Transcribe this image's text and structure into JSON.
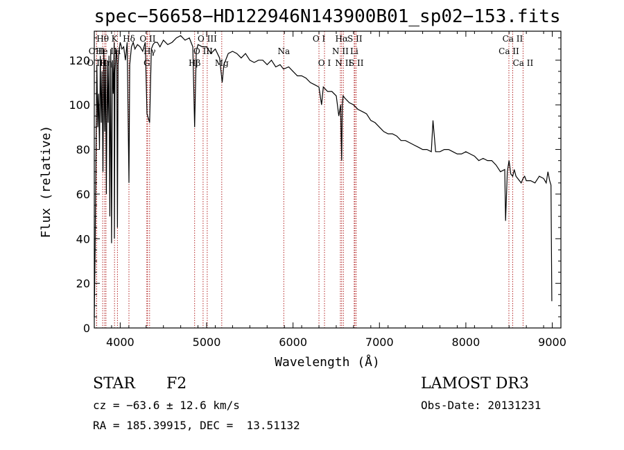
{
  "footer": {
    "object_class": "STAR",
    "subclass": "F2",
    "survey": "LAMOST DR3",
    "cz": "cz = −63.6 ± 12.6 km/s",
    "obs_date": "Obs-Date: 20131231",
    "coords": "RA = 185.39915, DEC =  13.51132"
  },
  "chart_data": {
    "type": "line",
    "title": "spec−56658−HD122946N143900B01_sp02−153.fits",
    "xlabel": "Wavelength (Å)",
    "ylabel": "Flux (relative)",
    "xlim": [
      3700,
      9100
    ],
    "ylim": [
      0,
      133
    ],
    "xticks": [
      4000,
      5000,
      6000,
      7000,
      8000,
      9000
    ],
    "yticks": [
      0,
      20,
      40,
      60,
      80,
      100,
      120
    ],
    "grid": false,
    "series": [
      {
        "name": "flux",
        "x": [
          3700,
          3710,
          3720,
          3730,
          3740,
          3750,
          3760,
          3770,
          3780,
          3790,
          3800,
          3810,
          3820,
          3830,
          3840,
          3850,
          3860,
          3870,
          3880,
          3890,
          3900,
          3910,
          3920,
          3930,
          3933,
          3940,
          3950,
          3960,
          3968,
          3975,
          3985,
          4000,
          4020,
          4040,
          4060,
          4080,
          4101,
          4110,
          4130,
          4150,
          4170,
          4200,
          4230,
          4260,
          4290,
          4310,
          4340,
          4360,
          4380,
          4400,
          4430,
          4460,
          4500,
          4550,
          4600,
          4650,
          4700,
          4750,
          4800,
          4820,
          4840,
          4861,
          4880,
          4900,
          4950,
          5000,
          5050,
          5100,
          5150,
          5180,
          5200,
          5250,
          5300,
          5350,
          5400,
          5450,
          5500,
          5550,
          5600,
          5650,
          5700,
          5750,
          5800,
          5850,
          5890,
          5950,
          6000,
          6050,
          6100,
          6150,
          6200,
          6250,
          6300,
          6330,
          6350,
          6400,
          6450,
          6500,
          6530,
          6550,
          6563,
          6570,
          6580,
          6600,
          6650,
          6700,
          6750,
          6800,
          6850,
          6900,
          6950,
          7000,
          7050,
          7100,
          7150,
          7200,
          7250,
          7300,
          7350,
          7400,
          7450,
          7500,
          7550,
          7600,
          7620,
          7650,
          7700,
          7750,
          7800,
          7850,
          7900,
          7950,
          8000,
          8050,
          8100,
          8150,
          8200,
          8250,
          8300,
          8350,
          8400,
          8450,
          8460,
          8480,
          8500,
          8520,
          8542,
          8560,
          8580,
          8600,
          8640,
          8662,
          8680,
          8700,
          8750,
          8800,
          8850,
          8900,
          8930,
          8950,
          8970,
          8985,
          8995
        ],
        "values": [
          5,
          35,
          80,
          118,
          90,
          105,
          80,
          122,
          92,
          115,
          70,
          125,
          88,
          118,
          60,
          120,
          92,
          122,
          50,
          125,
          38,
          120,
          105,
          128,
          40,
          115,
          122,
          125,
          45,
          118,
          124,
          128,
          125,
          126,
          120,
          128,
          65,
          118,
          126,
          128,
          125,
          127,
          126,
          124,
          128,
          96,
          92,
          125,
          127,
          128,
          128,
          126,
          129,
          127,
          128,
          130,
          131,
          129,
          130,
          128,
          126,
          90,
          124,
          127,
          126,
          126,
          123,
          125,
          121,
          110,
          118,
          123,
          124,
          123,
          121,
          123,
          120,
          119,
          120,
          120,
          118,
          120,
          117,
          118,
          116,
          117,
          115,
          113,
          113,
          112,
          110,
          109,
          108,
          100,
          108,
          106,
          106,
          104,
          95,
          100,
          75,
          100,
          104,
          103,
          101,
          100,
          98,
          97,
          96,
          93,
          92,
          90,
          88,
          87,
          87,
          86,
          84,
          84,
          83,
          82,
          81,
          80,
          80,
          79,
          93,
          79,
          79,
          80,
          80,
          79,
          78,
          78,
          79,
          78,
          77,
          75,
          76,
          75,
          75,
          73,
          70,
          71,
          48,
          70,
          75,
          69,
          68,
          71,
          68,
          67,
          65,
          67,
          68,
          66,
          66,
          65,
          68,
          67,
          65,
          70,
          66,
          64,
          12
        ]
      }
    ],
    "lines": [
      {
        "name": "O III",
        "x": 3727,
        "row": 2
      },
      {
        "name": "O II",
        "x": 3727,
        "row": 1
      },
      {
        "name": "Hθ",
        "x": 3797,
        "row": 0
      },
      {
        "name": "He I",
        "x": 3820,
        "row": 1
      },
      {
        "name": "Hη",
        "x": 3835,
        "row": 2
      },
      {
        "name": "K",
        "x": 3934,
        "row": 0
      },
      {
        "name": "H",
        "x": 3968,
        "row": 1
      },
      {
        "name": "Hδ",
        "x": 4101,
        "row": 0
      },
      {
        "name": "O II",
        "x": 4317,
        "row": 0
      },
      {
        "name": "Hγ",
        "x": 4340,
        "row": 1
      },
      {
        "name": "G",
        "x": 4308,
        "row": 2
      },
      {
        "name": "O III",
        "x": 5007,
        "row": 0
      },
      {
        "name": "Hβ",
        "x": 4861,
        "row": 2
      },
      {
        "name": "O III",
        "x": 4959,
        "row": 1
      },
      {
        "name": "Mg",
        "x": 5175,
        "row": 2
      },
      {
        "name": "Na",
        "x": 5893,
        "row": 1
      },
      {
        "name": "O I",
        "x": 6300,
        "row": 0
      },
      {
        "name": "O I",
        "x": 6364,
        "row": 2
      },
      {
        "name": "Hα",
        "x": 6563,
        "row": 0
      },
      {
        "name": "N II",
        "x": 6548,
        "row": 1
      },
      {
        "name": "N II",
        "x": 6583,
        "row": 2
      },
      {
        "name": "S II",
        "x": 6716,
        "row": 0
      },
      {
        "name": "Li",
        "x": 6708,
        "row": 1
      },
      {
        "name": "S II",
        "x": 6731,
        "row": 2
      },
      {
        "name": "Ca II",
        "x": 8542,
        "row": 0
      },
      {
        "name": "Ca II",
        "x": 8498,
        "row": 1
      },
      {
        "name": "Ca II",
        "x": 8662,
        "row": 2
      }
    ]
  }
}
